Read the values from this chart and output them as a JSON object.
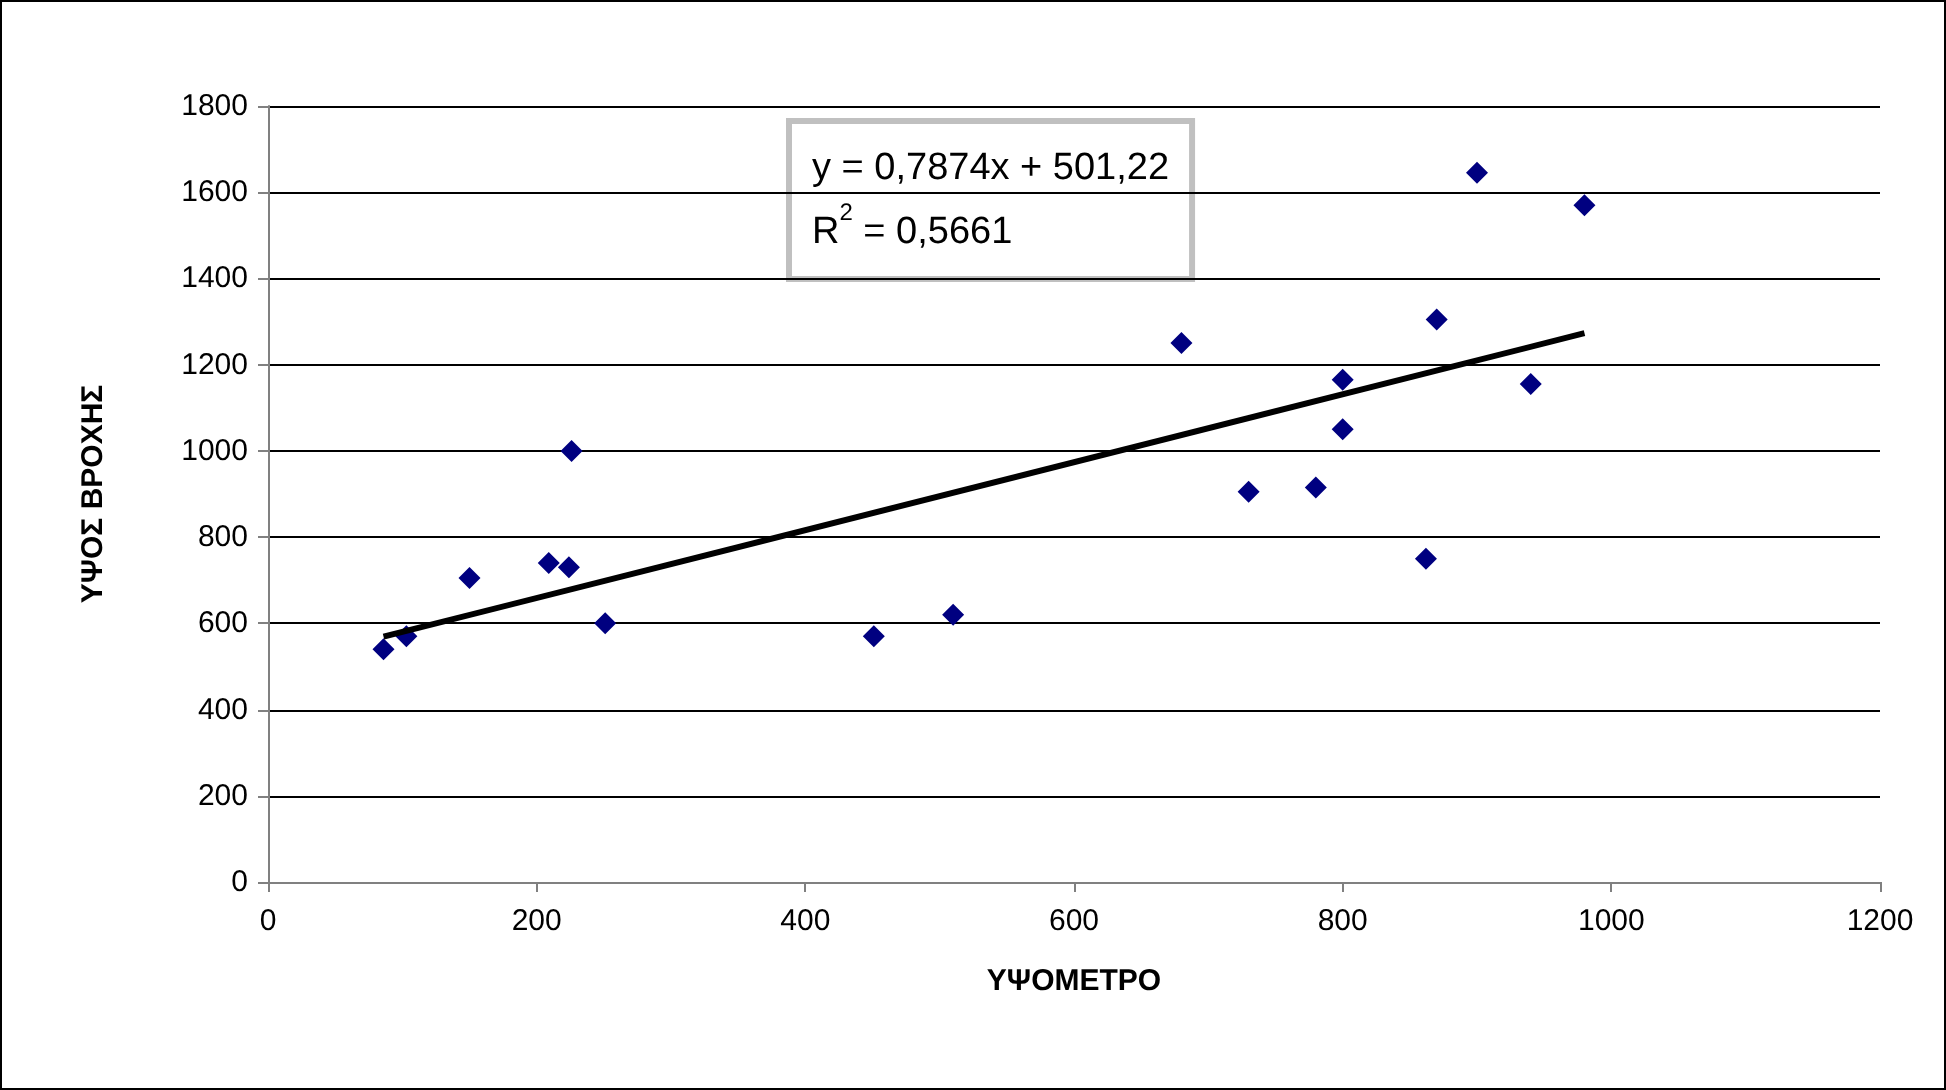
{
  "chart_data": {
    "type": "scatter",
    "xlabel": "ΥΨΟΜΕΤΡΟ",
    "ylabel": "ΥΨΟΣ ΒΡΟΧΗΣ",
    "annotations": [
      "y = 0,7874x + 501,22",
      "R$^{2}$ = 0,5661"
    ],
    "series": [
      {
        "color": "#000080",
        "marker": "diamond",
        "x": [
          86,
          103,
          150,
          209,
          224,
          226,
          251,
          451,
          510,
          680,
          730,
          780,
          800,
          800,
          862,
          870,
          900,
          940,
          980
        ],
        "values": [
          540,
          570,
          705,
          740,
          730,
          1000,
          600,
          570,
          620,
          1250,
          905,
          915,
          1165,
          1050,
          750,
          1305,
          1645,
          1155,
          1570
        ]
      },
      {
        "type": "line",
        "color": "#000000",
        "marker": "none",
        "x": [
          86,
          980
        ],
        "values": [
          569,
          1273
        ]
      }
    ],
    "xlim": [
      0,
      1200
    ],
    "xticks": [
      0,
      200,
      400,
      600,
      800,
      1000,
      1200
    ],
    "ylim": [
      0,
      1800
    ],
    "yticks": [
      0,
      200,
      400,
      600,
      800,
      1000,
      1200,
      1400,
      1600,
      1800
    ],
    "grid": "y"
  }
}
